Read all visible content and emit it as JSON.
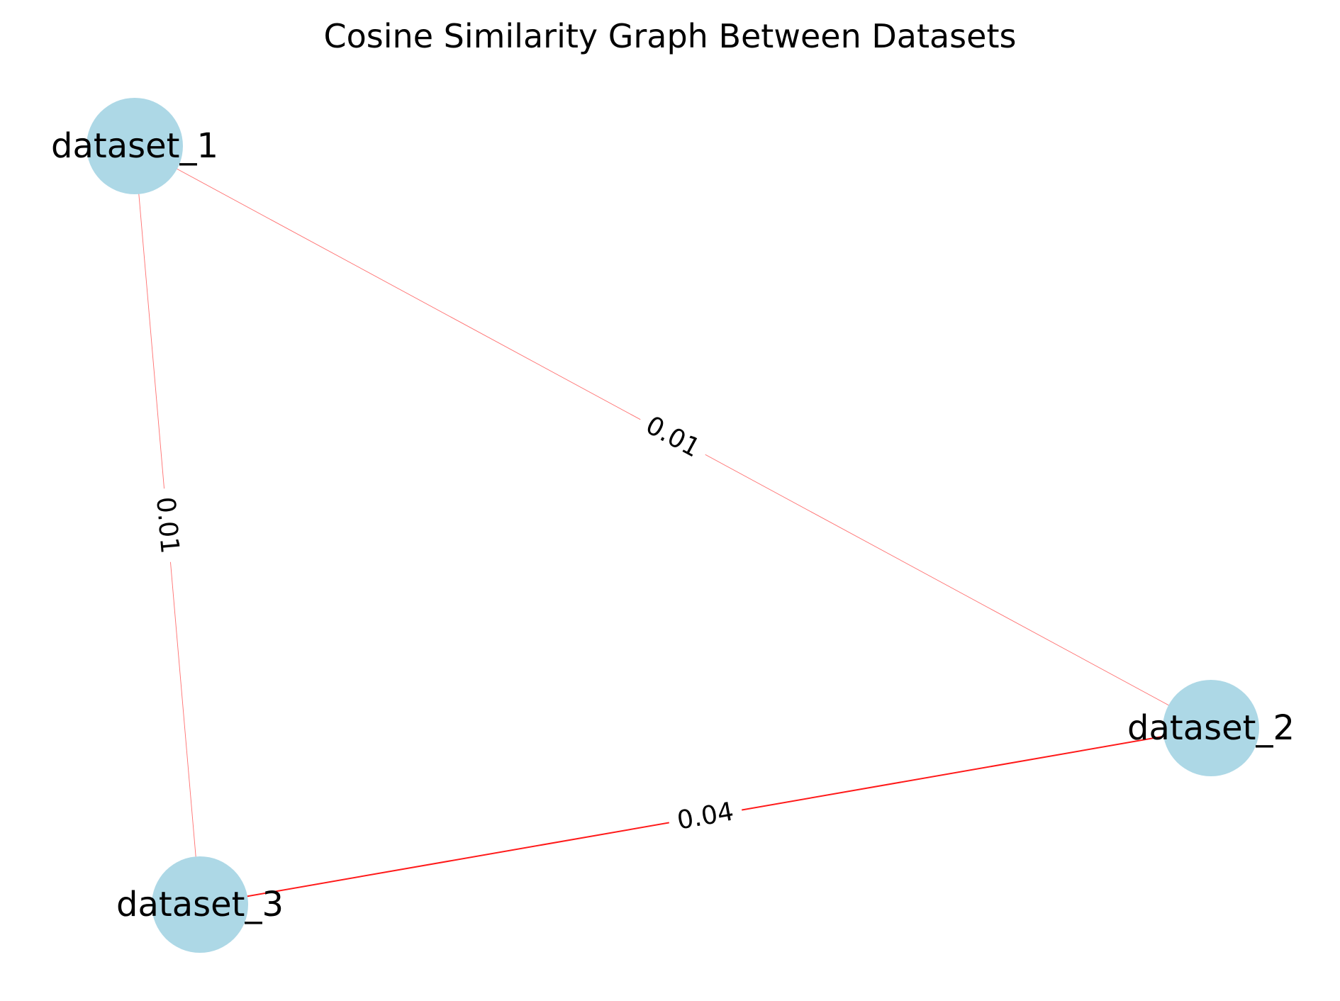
{
  "title": "Cosine Similarity Graph Between Datasets",
  "colors": {
    "node_fill": "#add8e6",
    "edge": "#ff0000",
    "text": "#000000",
    "background": "#ffffff"
  },
  "nodes": [
    {
      "id": "dataset_1",
      "label": "dataset_1"
    },
    {
      "id": "dataset_2",
      "label": "dataset_2"
    },
    {
      "id": "dataset_3",
      "label": "dataset_3"
    }
  ],
  "edges": [
    {
      "source": "dataset_1",
      "target": "dataset_2",
      "label": "0.01",
      "weight": 0.01
    },
    {
      "source": "dataset_1",
      "target": "dataset_3",
      "label": "0.01",
      "weight": 0.01
    },
    {
      "source": "dataset_2",
      "target": "dataset_3",
      "label": "0.04",
      "weight": 0.04
    }
  ]
}
